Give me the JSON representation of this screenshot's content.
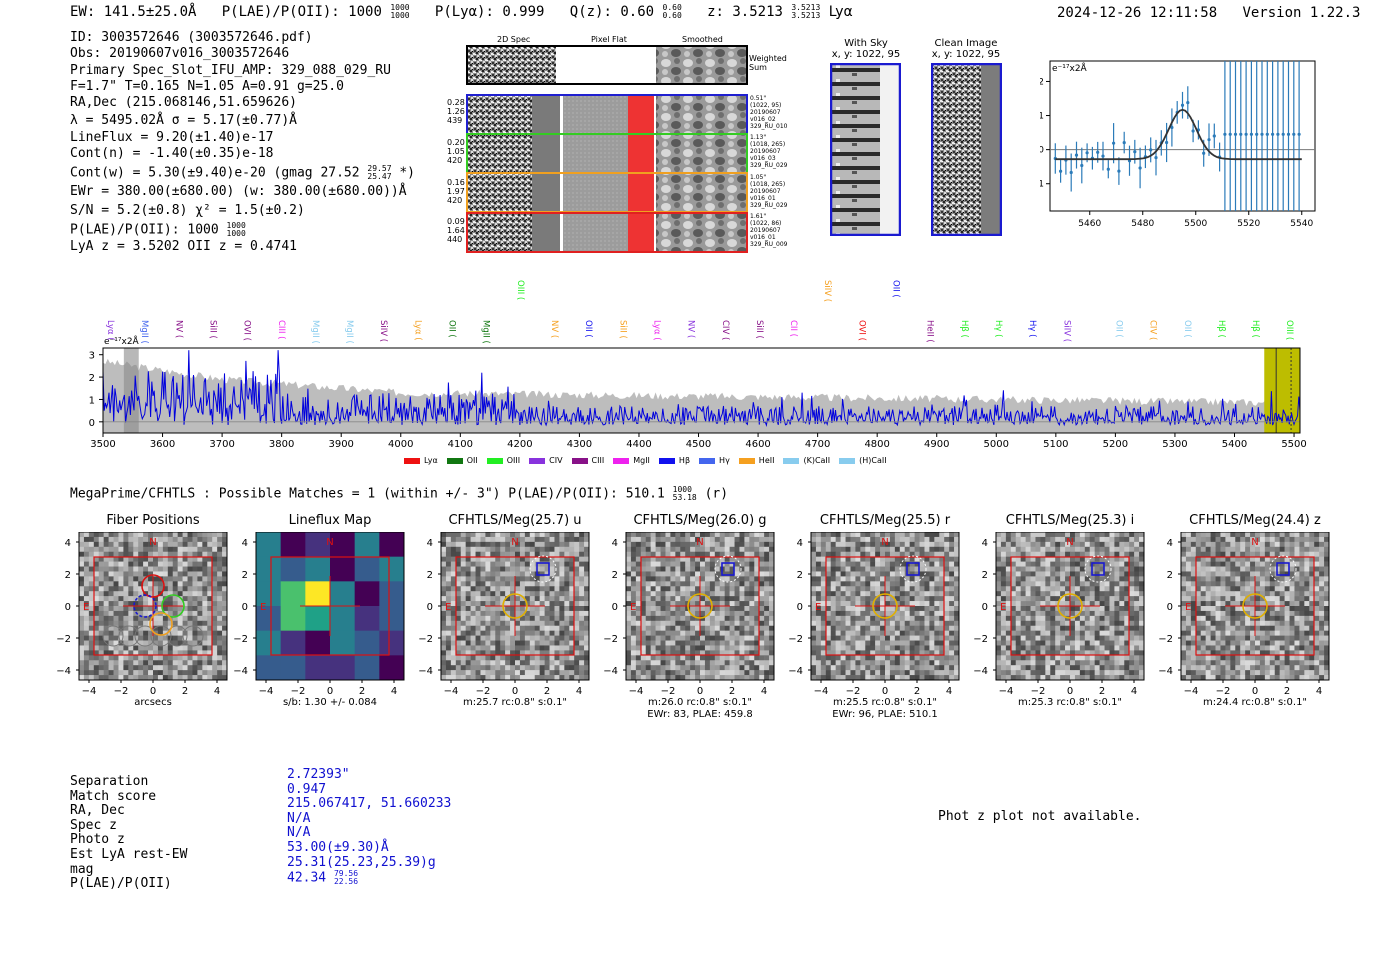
{
  "header": {
    "ew": "EW: 141.5±25.0Å",
    "plae": "P(LAE)/P(OII): 1000",
    "plae_hi": "1000",
    "plae_lo": "1000",
    "plya": "P(Lyα): 0.999",
    "qz": "Q(z): 0.60",
    "qz_hi": "0.60",
    "qz_lo": "0.60",
    "z": "z: 3.5213",
    "z_hi": "3.5213",
    "z_lo": "3.5213",
    "z_line": "Lyα",
    "datetime": "2024-12-26 12:11:58",
    "version": "Version 1.22.3"
  },
  "info": {
    "id": "ID: 3003572646 (3003572646.pdf)",
    "obs": "Obs: 20190607v016_3003572646",
    "primary": "Primary Spec_Slot_IFU_AMP: 329_088_029_RU",
    "fline": "F=1.7\"  T=0.165  N=1.05  A=0.91  g=25.0",
    "radec": "RA,Dec (215.068146,51.659626)",
    "lambda": "λ = 5495.02Å  σ = 5.17(±0.77)Å",
    "lineflux": "LineFlux = 9.20(±1.40)e-17",
    "contn": "Cont(n) = -1.40(±0.35)e-18",
    "contw": "Cont(w) = 5.30(±9.40)e-20 (gmag 27.52",
    "contw_hi": "29.57",
    "contw_lo": "25.47",
    "contw_end": "*)",
    "ewr": "EWr = 380.00(±680.00) (w: 380.00(±680.00))Å",
    "sn": "S/N = 5.2(±0.8)  χ² = 1.5(±0.2)",
    "plae": "P(LAE)/P(OII): 1000",
    "plae_hi": "1000",
    "plae_lo": "1000",
    "lyaz": "LyA z = 3.5202  OII z = 0.4741"
  },
  "cutouts": {
    "col_labels": [
      "2D Spec",
      "Pixel Flat",
      "Smoothed"
    ],
    "weighted_label": "Weighted Sum",
    "rows": [
      {
        "left": [
          "0.28",
          "1.26",
          "439"
        ],
        "right": [
          "0.51\"",
          "(1022, 95)",
          "20190607",
          "v016_02",
          "329_RU_010"
        ],
        "color": "#1f1fd0"
      },
      {
        "left": [
          "0.20",
          "1.05",
          "420"
        ],
        "right": [
          "1.13\"",
          "(1018, 265)",
          "20190607",
          "v016_03",
          "329_RU_029"
        ],
        "color": "#33cc22"
      },
      {
        "left": [
          "0.16",
          "1.97",
          "420"
        ],
        "right": [
          "1.05\"",
          "(1018, 265)",
          "20190607",
          "v016_01",
          "329_RU_029"
        ],
        "color": "#f0a020"
      },
      {
        "left": [
          "0.09",
          "1.64",
          "440"
        ],
        "right": [
          "1.61\"",
          "(1022, 86)",
          "20190607",
          "v016_01",
          "329_RU_009"
        ],
        "color": "#e02020"
      }
    ],
    "with_sky": "With Sky",
    "with_sky_xy": "x, y: 1022, 95",
    "clean": "Clean Image",
    "clean_xy": "x, y: 1022, 95"
  },
  "fit_plot": {
    "unit": "e⁻¹⁷x2Å",
    "xticks": [
      "5460",
      "5480",
      "5500",
      "5520",
      "5540"
    ],
    "yticks": [
      "2",
      "1",
      "0",
      "−1"
    ]
  },
  "spectrum": {
    "unit": "e⁻¹⁷x2Å",
    "xticks": [
      "3500",
      "3600",
      "3700",
      "3800",
      "3900",
      "4000",
      "4100",
      "4200",
      "4300",
      "4400",
      "4500",
      "4600",
      "4700",
      "4800",
      "4900",
      "5000",
      "5100",
      "5200",
      "5300",
      "5400",
      "5500"
    ],
    "yticks": [
      "3",
      "2",
      "1",
      "0"
    ],
    "legend": [
      {
        "name": "Lyα",
        "color": "#ee1111"
      },
      {
        "name": "OII",
        "color": "#117711"
      },
      {
        "name": "OIII",
        "color": "#22ee22"
      },
      {
        "name": "CIV",
        "color": "#8833dd"
      },
      {
        "name": "CIII",
        "color": "#881188"
      },
      {
        "name": "MgII",
        "color": "#ee22ee"
      },
      {
        "name": "Hβ",
        "color": "#1111ee"
      },
      {
        "name": "Hγ",
        "color": "#4466ee"
      },
      {
        "name": "HeII",
        "color": "#f5a020"
      },
      {
        "name": "(K)CaII",
        "color": "#88ccee"
      },
      {
        "name": "(H)CaII",
        "color": "#88ccee"
      }
    ],
    "line_ids": [
      {
        "t": "Lyα",
        "c": "#8833dd"
      },
      {
        "t": "MgII",
        "c": "#4466ee"
      },
      {
        "t": "NV",
        "c": "#881188"
      },
      {
        "t": "SiII",
        "c": "#881188"
      },
      {
        "t": "OVI",
        "c": "#881188"
      },
      {
        "t": "CIII",
        "c": "#ee22ee"
      },
      {
        "t": "MgII",
        "c": "#88ccee"
      },
      {
        "t": "MgII",
        "c": "#88ccee"
      },
      {
        "t": "SiIV",
        "c": "#881188"
      },
      {
        "t": "Lyα",
        "c": "#f5a020"
      },
      {
        "t": "OII",
        "c": "#117711"
      },
      {
        "t": "MgII",
        "c": "#117711"
      },
      {
        "t": "OIII",
        "c": "#22ee22"
      },
      {
        "t": "NV",
        "c": "#f5a020"
      },
      {
        "t": "OII",
        "c": "#1111ee"
      },
      {
        "t": "SiII",
        "c": "#f5a020"
      },
      {
        "t": "Lyα",
        "c": "#ee22ee"
      },
      {
        "t": "NV",
        "c": "#8833dd"
      },
      {
        "t": "CIV",
        "c": "#881188"
      },
      {
        "t": "SiII",
        "c": "#881188"
      },
      {
        "t": "CII",
        "c": "#ee22ee"
      },
      {
        "t": "SiIV",
        "c": "#f5a020"
      },
      {
        "t": "OVI",
        "c": "#ee1111"
      },
      {
        "t": "OII",
        "c": "#1111ee"
      },
      {
        "t": "HeII",
        "c": "#881188"
      },
      {
        "t": "Hβ",
        "c": "#22ee22"
      },
      {
        "t": "Hγ",
        "c": "#22ee22"
      },
      {
        "t": "Hγ",
        "c": "#1111ee"
      },
      {
        "t": "SiIV",
        "c": "#8833dd"
      },
      {
        "t": "OII",
        "c": "#88ccee"
      },
      {
        "t": "CIV",
        "c": "#f5a020"
      },
      {
        "t": "OII",
        "c": "#88ccee"
      },
      {
        "t": "Hβ",
        "c": "#22ee22"
      },
      {
        "t": "Hβ",
        "c": "#22ee22"
      },
      {
        "t": "OIII",
        "c": "#22ee22"
      }
    ]
  },
  "matches": {
    "title": "MegaPrime/CFHTLS : Possible Matches = 1 (within +/- 3\")  P(LAE)/P(OII): 510.1",
    "plae_hi": "1000",
    "plae_lo": "53.18",
    "band": "(r)"
  },
  "panels": [
    {
      "title": "Fiber Positions",
      "cap1": "arcsecs",
      "cap2": ""
    },
    {
      "title": "Lineflux Map",
      "cap1": "s/b: 1.30 +/- 0.084",
      "cap2": ""
    },
    {
      "title": "CFHTLS/Meg(25.7) u",
      "cap1": "m:25.7 rc:0.8\"  s:0.1\"",
      "cap2": ""
    },
    {
      "title": "CFHTLS/Meg(26.0) g",
      "cap1": "m:26.0 rc:0.8\"  s:0.1\"",
      "cap2": "EWr: 83, PLAE: 459.8"
    },
    {
      "title": "CFHTLS/Meg(25.5) r",
      "cap1": "m:25.5 rc:0.8\"  s:0.1\"",
      "cap2": "EWr: 96, PLAE: 510.1"
    },
    {
      "title": "CFHTLS/Meg(25.3) i",
      "cap1": "m:25.3 rc:0.8\"  s:0.1\"",
      "cap2": ""
    },
    {
      "title": "CFHTLS/Meg(24.4) z",
      "cap1": "m:24.4 rc:0.8\"  s:0.1\"",
      "cap2": ""
    }
  ],
  "panel_axes": {
    "yticks": [
      "4",
      "2",
      "0",
      "−2",
      "−4"
    ],
    "xticks": [
      "−4",
      "−2",
      "0",
      "2",
      "4"
    ],
    "north": "N",
    "east": "E"
  },
  "summary": {
    "labels": [
      "Separation",
      "Match score",
      "RA, Dec",
      "Spec z",
      "Photo z",
      "Est LyA rest-EW",
      "mag",
      "P(LAE)/P(OII)"
    ],
    "values": [
      "2.72393\"",
      "0.947",
      "215.067417, 51.660233",
      "N/A",
      "N/A",
      "53.00(±9.30)Å",
      "25.31(25.23,25.39)g",
      "42.34"
    ],
    "plae_hi": "79.56",
    "plae_lo": "22.56",
    "photz_note": "Phot z plot not available."
  }
}
